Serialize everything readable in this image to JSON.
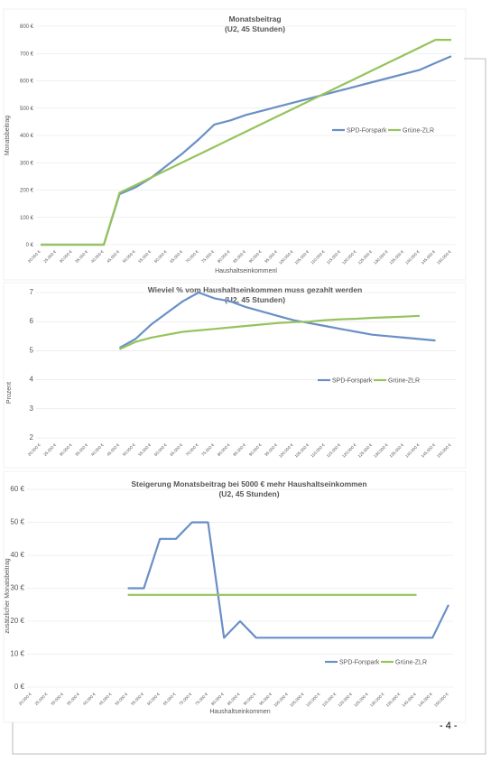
{
  "chart_data": [
    {
      "type": "line",
      "title": "Monatsbeitrag",
      "subtitle": "(U2, 45 Stunden)",
      "x_label": "Haushaltseinkommenl",
      "y_label": "Monatsbeitrag",
      "categories": [
        "20.000 €",
        "25.000 €",
        "30.000 €",
        "35.000 €",
        "40.000 €",
        "45.000 €",
        "50.000 €",
        "55.000 €",
        "60.000 €",
        "65.000 €",
        "70.000 €",
        "75.000 €",
        "80.000 €",
        "85.000 €",
        "90.000 €",
        "95.000 €",
        "100.000 €",
        "105.000 €",
        "110.000 €",
        "115.000 €",
        "120.000 €",
        "125.000 €",
        "130.000 €",
        "135.000 €",
        "140.000 €",
        "145.000 €",
        "150.000 €"
      ],
      "series": [
        {
          "name": "SPD-Forspark",
          "color": "#6a8fc6",
          "values": [
            0,
            0,
            0,
            0,
            0,
            185,
            210,
            245,
            290,
            335,
            385,
            440,
            455,
            475,
            490,
            505,
            520,
            535,
            550,
            565,
            580,
            595,
            610,
            625,
            640,
            665,
            690
          ]
        },
        {
          "name": "Grüne-ZLR",
          "color": "#95c45c",
          "values": [
            0,
            0,
            0,
            0,
            0,
            190,
            218,
            246,
            274,
            302,
            330,
            358,
            386,
            414,
            442,
            470,
            498,
            526,
            554,
            582,
            610,
            638,
            666,
            694,
            722,
            750,
            750
          ]
        }
      ],
      "ylim": [
        0,
        800
      ],
      "yticks": [
        {
          "value": 0,
          "label": "0 €"
        },
        {
          "value": 100,
          "label": "100 €"
        },
        {
          "value": 200,
          "label": "200 €"
        },
        {
          "value": 300,
          "label": "300 €"
        },
        {
          "value": 400,
          "label": "400 €"
        },
        {
          "value": 500,
          "label": "500 €"
        },
        {
          "value": 600,
          "label": "600 €"
        },
        {
          "value": 700,
          "label": "700 €"
        },
        {
          "value": 800,
          "label": "800 €"
        }
      ],
      "grid": true,
      "legend": "right"
    },
    {
      "type": "line",
      "title": "Wieviel % vom Haushaltseinkommen muss gezahlt werden",
      "subtitle": "(U2, 45 Stunden)",
      "y_label": "Prozent",
      "categories": [
        "20.000 €",
        "25.000 €",
        "30.000 €",
        "35.000 €",
        "40.000 €",
        "45.000 €",
        "50.000 €",
        "55.000 €",
        "60.000 €",
        "65.000 €",
        "70.000 €",
        "75.000 €",
        "80.000 €",
        "85.000 €",
        "90.000 €",
        "95.000 €",
        "100.000 €",
        "105.000 €",
        "110.000 €",
        "115.000 €",
        "120.000 €",
        "125.000 €",
        "130.000 €",
        "135.000 €",
        "140.000 €",
        "145.000 €",
        "150.000 €"
      ],
      "series": [
        {
          "name": "SPD-Forspark",
          "color": "#6a8fc6",
          "values": [
            null,
            null,
            null,
            null,
            null,
            5.1,
            5.4,
            5.9,
            6.3,
            6.7,
            7.0,
            6.8,
            6.7,
            6.5,
            6.35,
            6.2,
            6.05,
            5.95,
            5.85,
            5.75,
            5.65,
            5.55,
            5.5,
            5.45,
            5.4,
            5.35,
            null
          ]
        },
        {
          "name": "Grüne-ZLR",
          "color": "#95c45c",
          "values": [
            null,
            null,
            null,
            null,
            null,
            5.05,
            5.3,
            5.45,
            5.55,
            5.65,
            5.7,
            5.75,
            5.8,
            5.85,
            5.9,
            5.95,
            5.98,
            6.0,
            6.05,
            6.08,
            6.1,
            6.13,
            6.15,
            6.17,
            6.2,
            null,
            null
          ]
        }
      ],
      "ylim": [
        2,
        7
      ],
      "yticks": [
        2,
        3,
        4,
        5,
        6,
        7
      ],
      "grid": true,
      "legend": "right"
    },
    {
      "type": "line",
      "title": "Steigerung Monatsbeitrag bei 5000 € mehr Haushaltseinkommen",
      "subtitle": "(U2, 45 Stunden)",
      "x_label": "Haushaltseinkommen",
      "y_label": "zusätzlicher  Monatsbeitrag",
      "categories": [
        "20.000 €",
        "25.000 €",
        "30.000 €",
        "35.000 €",
        "40.000 €",
        "45.000 €",
        "50.000 €",
        "55.000 €",
        "60.000 €",
        "65.000 €",
        "70.000 €",
        "75.000 €",
        "80.000 €",
        "85.000 €",
        "90.000 €",
        "95.000 €",
        "100.000 €",
        "105.000 €",
        "110.000 €",
        "115.000 €",
        "120.000 €",
        "125.000 €",
        "130.000 €",
        "135.000 €",
        "140.000 €",
        "145.000 €",
        "150.000 €"
      ],
      "series": [
        {
          "name": "SPD-Forspark",
          "color": "#6a8fc6",
          "values": [
            null,
            null,
            null,
            null,
            null,
            null,
            30,
            30,
            45,
            45,
            50,
            50,
            15,
            20,
            15,
            15,
            15,
            15,
            15,
            15,
            15,
            15,
            15,
            15,
            15,
            15,
            25
          ]
        },
        {
          "name": "Grüne-ZLR",
          "color": "#95c45c",
          "values": [
            null,
            null,
            null,
            null,
            null,
            null,
            28,
            28,
            28,
            28,
            28,
            28,
            28,
            28,
            28,
            28,
            28,
            28,
            28,
            28,
            28,
            28,
            28,
            28,
            28,
            null,
            null
          ]
        }
      ],
      "ylim": [
        0,
        60
      ],
      "yticks": [
        {
          "value": 0,
          "label": "0 €"
        },
        {
          "value": 10,
          "label": "10 €"
        },
        {
          "value": 20,
          "label": "20 €"
        },
        {
          "value": 30,
          "label": "30 €"
        },
        {
          "value": 40,
          "label": "40 €"
        },
        {
          "value": 50,
          "label": "50 €"
        },
        {
          "value": 60,
          "label": "60 €"
        }
      ],
      "grid": true,
      "legend": "bottom-right"
    }
  ],
  "page_number": "- 4 -"
}
